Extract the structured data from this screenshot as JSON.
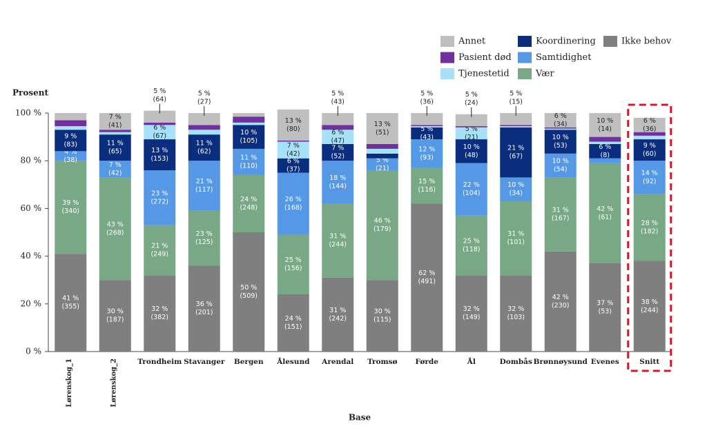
{
  "chart_data": {
    "type": "stacked_bar",
    "y_axis_title": "Prosent",
    "x_axis_title": "Base",
    "categories": [
      "Lørenskog_1",
      "Lørenskog_2",
      "Trondheim",
      "Stavanger",
      "Bergen",
      "Ålesund",
      "Arendal",
      "Tromsø",
      "Førde",
      "Ål",
      "Dombås",
      "Brønnøysund",
      "Evenes",
      "Snitt"
    ],
    "highlight": "Snitt",
    "ylim": [
      0,
      100
    ],
    "yticks": [
      {
        "value": 0,
        "label": "0 %"
      },
      {
        "value": 20,
        "label": "20 %"
      },
      {
        "value": 40,
        "label": "40 %"
      },
      {
        "value": 60,
        "label": "60 %"
      },
      {
        "value": 80,
        "label": "80 %"
      },
      {
        "value": 100,
        "label": "100 %"
      }
    ],
    "legend": "top-right",
    "series": [
      {
        "name": "Ikke behov",
        "color": "#7f7f7f",
        "values": [
          41,
          30,
          32,
          36,
          50,
          24,
          31,
          30,
          62,
          32,
          32,
          42,
          37,
          38
        ],
        "value_labels": [
          "41 %",
          "30 %",
          "32 %",
          "36 %",
          "50 %",
          "24 %",
          "31 %",
          "30 %",
          "62 %",
          "32 %",
          "32 %",
          "42 %",
          "37 %",
          "38 %"
        ],
        "count_labels": [
          "(355)",
          "(187)",
          "(382)",
          "(201)",
          "(509)",
          "(151)",
          "(242)",
          "(115)",
          "(491)",
          "(149)",
          "(103)",
          "(230)",
          "(53)",
          "(244)"
        ]
      },
      {
        "name": "Vær",
        "color": "#78a886",
        "values": [
          39,
          43,
          21,
          23,
          24,
          25,
          31,
          46,
          15,
          25,
          31,
          31,
          42,
          28
        ],
        "value_labels": [
          "39 %",
          "43 %",
          "21 %",
          "23 %",
          "24 %",
          "25 %",
          "31 %",
          "46 %",
          "15 %",
          "25 %",
          "31 %",
          "31 %",
          "42 %",
          "28 %"
        ],
        "count_labels": [
          "(340)",
          "(268)",
          "(249)",
          "(125)",
          "(248)",
          "(156)",
          "(244)",
          "(179)",
          "(116)",
          "(118)",
          "(101)",
          "(167)",
          "(61)",
          "(182)"
        ]
      },
      {
        "name": "Samtidighet",
        "color": "#5599e6",
        "values": [
          4,
          7,
          23,
          21,
          11,
          26,
          18,
          5,
          12,
          22,
          10,
          10,
          2,
          14
        ],
        "value_labels": [
          "4 %",
          "7 %",
          "23 %",
          "21 %",
          "11 %",
          "26 %",
          "18 %",
          "5 %",
          "12 %",
          "22 %",
          "10 %",
          "10 %",
          null,
          "14 %"
        ],
        "count_labels": [
          "(38)",
          "(42)",
          "(272)",
          "(117)",
          "(110)",
          "(168)",
          "(144)",
          "(21)",
          "(93)",
          "(104)",
          "(34)",
          "(54)",
          null,
          "(92)"
        ]
      },
      {
        "name": "Koordinering",
        "color": "#0a2d7d",
        "values": [
          9,
          11,
          13,
          11,
          10,
          6,
          7,
          2,
          5,
          10,
          21,
          10,
          6,
          9
        ],
        "value_labels": [
          "9 %",
          "11 %",
          "13 %",
          "11 %",
          "10 %",
          "6 %",
          "7 %",
          null,
          "5 %",
          "10 %",
          "21 %",
          "10 %",
          "6 %",
          "9 %"
        ],
        "count_labels": [
          "(83)",
          "(65)",
          "(153)",
          "(62)",
          "(105)",
          "(37)",
          "(52)",
          null,
          "(43)",
          "(48)",
          "(67)",
          "(53)",
          "(8)",
          "(60)"
        ]
      },
      {
        "name": "Tjenestetid",
        "color": "#a6e1f7",
        "values": [
          1.5,
          1,
          6,
          2,
          1,
          7,
          6,
          2,
          0.5,
          5,
          0.5,
          0.5,
          1,
          1.5
        ],
        "value_labels": [
          null,
          null,
          "6 %",
          null,
          null,
          "7 %",
          "6 %",
          null,
          null,
          "5 %",
          null,
          null,
          null,
          null
        ],
        "count_labels": [
          null,
          null,
          "(67)",
          null,
          null,
          "(42)",
          "(47)",
          null,
          null,
          "(21)",
          null,
          null,
          null,
          null
        ]
      },
      {
        "name": "Pasient død",
        "color": "#7030a0",
        "values": [
          2.5,
          1,
          1,
          2,
          2.5,
          0.5,
          2,
          2,
          0.5,
          0.5,
          0.5,
          0.5,
          2,
          1.5
        ],
        "value_labels": [
          null,
          null,
          null,
          null,
          null,
          null,
          null,
          null,
          null,
          null,
          null,
          null,
          null,
          null
        ],
        "count_labels": [
          null,
          null,
          null,
          null,
          null,
          null,
          null,
          null,
          null,
          null,
          null,
          null,
          null,
          null
        ]
      },
      {
        "name": "Annet",
        "color": "#bfbfbf",
        "values": [
          3,
          7,
          5,
          5,
          1.5,
          13,
          5,
          13,
          5,
          5,
          5,
          6,
          10,
          6
        ],
        "value_labels": [
          null,
          "7 %",
          "5 %",
          "5 %",
          null,
          "13 %",
          "5 %",
          "13 %",
          "5 %",
          "5 %",
          "5 %",
          "6 %",
          "10 %",
          "6 %"
        ],
        "count_labels": [
          null,
          "(41)",
          "(64)",
          "(27)",
          null,
          "(80)",
          "(43)",
          "(51)",
          "(36)",
          "(24)",
          "(15)",
          "(34)",
          "(14)",
          "(36)"
        ]
      }
    ]
  }
}
